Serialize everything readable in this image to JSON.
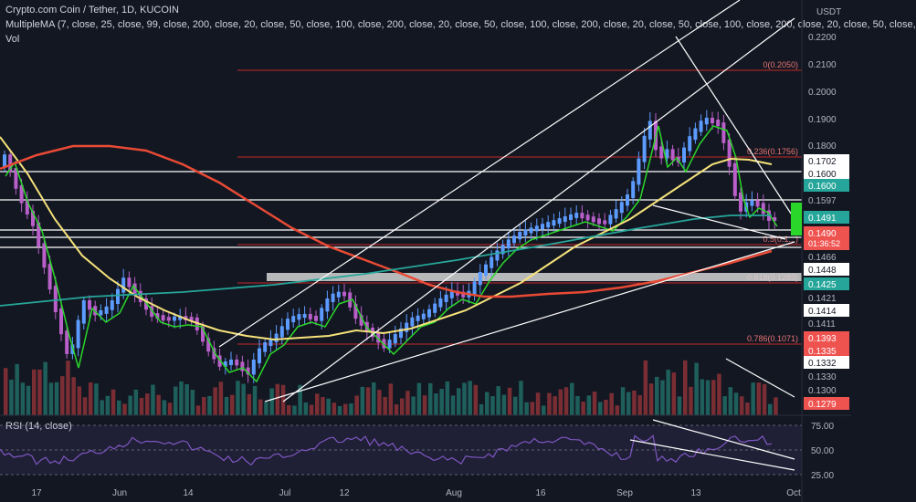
{
  "header": {
    "title": "Crypto.com Coin / Tether, 1D, KUCOIN",
    "ma_study": "MultipleMA (7, close, 25, close, 99, close, 200, close, 20, close, 50, close, 100, close, 200, close, 20, close, 50, close, 100, close, 200, close, 20, close, 50, close, 100, close, 200, close, 20, close, 50, close,",
    "vol_label": "Vol",
    "rsi_label": "RSI (14, close)"
  },
  "colors": {
    "background": "#131722",
    "up": "#26a69a",
    "down": "#ef5350",
    "candle_up": "#5c9bff",
    "candle_down": "#b95fc9",
    "ma_green": "#2bd62b",
    "ma_yellow": "#f5e27a",
    "ma_red": "#e84a35",
    "ma_teal": "#26a69a",
    "fib": "#c62828",
    "trendline": "#ffffff",
    "rsi": "#7e57c2"
  },
  "chart_data": {
    "type": "candlestick",
    "symbol": "Crypto.com Coin / Tether",
    "interval": "1D",
    "exchange": "KUCOIN",
    "currency": "USDT",
    "price_axis_ticks": [
      "0.2200",
      "0.2100",
      "0.2000",
      "0.1900",
      "0.1800",
      "0.1702",
      "0.1600",
      "0.1600",
      "0.1597",
      "0.1491",
      "0.1490",
      "0.1466",
      "0.1448",
      "0.1425",
      "0.1421",
      "0.1414",
      "0.1411",
      "0.1393",
      "0.1335",
      "0.1332",
      "0.1330",
      "0.1300",
      "0.1279"
    ],
    "highlighted_price_labels": [
      {
        "text": "0.1702",
        "color": "#ffffff"
      },
      {
        "text": "0.1600",
        "color": "#ffffff"
      },
      {
        "text": "0.1600",
        "color": "#26a69a"
      },
      {
        "text": "0.1491",
        "color": "#26a69a"
      },
      {
        "text": "0.1448",
        "color": "#ffffff"
      },
      {
        "text": "0.1425",
        "color": "#26a69a"
      },
      {
        "text": "0.1414",
        "color": "#ffffff"
      },
      {
        "text": "0.1393",
        "color": "#ef5350"
      },
      {
        "text": "0.1335",
        "color": "#ef5350"
      },
      {
        "text": "0.1332",
        "color": "#ffffff"
      },
      {
        "text": "0.1279",
        "color": "#ef5350"
      }
    ],
    "last_price": {
      "value": "0.1490",
      "countdown": "01:36:52"
    },
    "x_ticks": [
      "17",
      "Jun",
      "14",
      "Jul",
      "12",
      "Aug",
      "16",
      "Sep",
      "13",
      "Oct"
    ],
    "fib_levels": [
      {
        "label": "0(0.2050)",
        "value": 0.205
      },
      {
        "label": "0.236(0.1756)",
        "value": 0.1756
      },
      {
        "label": "0.5(0.1...)",
        "value": 0.143
      },
      {
        "label": "0.618(0.1283)",
        "value": 0.1283
      },
      {
        "label": "0.786(0.1071)",
        "value": 0.1071
      }
    ],
    "rsi": {
      "ticks": [
        "75.00",
        "50.00",
        "25.00"
      ],
      "period": 14
    }
  }
}
